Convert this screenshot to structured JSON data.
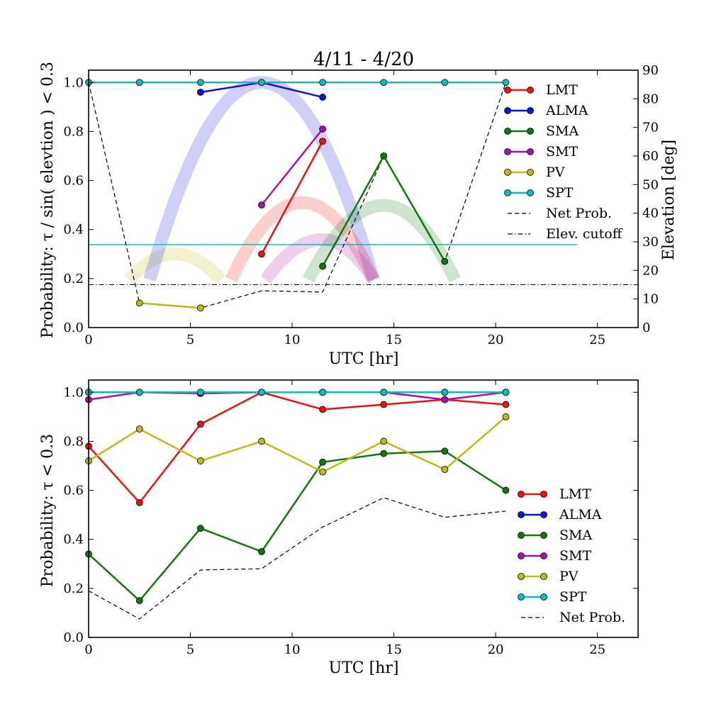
{
  "colors": {
    "LMT": "#ee1111",
    "ALMA": "#1111dd",
    "SMA": "#117711",
    "SMT": "#aa11aa",
    "PV": "#bbbb11",
    "SPT": "#11bbbb",
    "net": "#000000"
  },
  "chart_data": [
    {
      "type": "line",
      "title": "4/11 - 4/20",
      "xlabel": "UTC [hr]",
      "ylabel": "Probability: τ / sin( elevtion ) < 0.3",
      "y2label": "Elevation [deg]",
      "xlim": [
        0,
        27
      ],
      "ylim": [
        0,
        1.05
      ],
      "y2lim": [
        0,
        90
      ],
      "xticks": [
        "0",
        "5",
        "10",
        "15",
        "20",
        "25"
      ],
      "yticks": [
        "0.0",
        "0.2",
        "0.4",
        "0.6",
        "0.8",
        "1.0"
      ],
      "y2ticks": [
        "0",
        "10",
        "20",
        "30",
        "40",
        "50",
        "60",
        "70",
        "80",
        "90"
      ],
      "legend_position": "right",
      "series": [
        {
          "name": "LMT",
          "color": "#ee1111",
          "points": [
            [
              8.5,
              0.3
            ],
            [
              11.5,
              0.76
            ]
          ]
        },
        {
          "name": "ALMA",
          "color": "#1111dd",
          "points": [
            [
              5.5,
              0.96
            ],
            [
              8.5,
              1.0
            ],
            [
              11.5,
              0.94
            ]
          ]
        },
        {
          "name": "SMA",
          "color": "#117711",
          "points": [
            [
              11.5,
              0.25
            ],
            [
              14.5,
              0.7
            ],
            [
              17.5,
              0.27
            ]
          ]
        },
        {
          "name": "SMT",
          "color": "#aa11aa",
          "points": [
            [
              8.5,
              0.5
            ],
            [
              11.5,
              0.81
            ]
          ]
        },
        {
          "name": "PV",
          "color": "#bbbb11",
          "points": [
            [
              2.5,
              0.1
            ],
            [
              5.5,
              0.08
            ]
          ]
        },
        {
          "name": "SPT",
          "color": "#11bbbb",
          "points": [
            [
              0,
              1.0
            ],
            [
              2.5,
              1.0
            ],
            [
              5.5,
              1.0
            ],
            [
              8.5,
              1.0
            ],
            [
              11.5,
              1.0
            ],
            [
              14.5,
              1.0
            ],
            [
              17.5,
              1.0
            ],
            [
              20.5,
              1.0
            ]
          ]
        }
      ],
      "net_prob": {
        "name": "Net Prob.",
        "points": [
          [
            0,
            1.0
          ],
          [
            2.5,
            0.1
          ],
          [
            5.5,
            0.08
          ],
          [
            8.5,
            0.15
          ],
          [
            11.5,
            0.145
          ],
          [
            14.5,
            0.7
          ],
          [
            17.5,
            0.27
          ],
          [
            20.5,
            1.0
          ]
        ]
      },
      "elev_cutoff": {
        "name": "Elev. cutoff",
        "value_deg": 15
      },
      "spt_elevation_deg": 29,
      "elevation_tracks": [
        {
          "station": "PV",
          "start": 2,
          "end": 6.5,
          "peak": 4.2,
          "max_deg": 24
        },
        {
          "station": "ALMA",
          "start": 3,
          "end": 14,
          "peak": 8.5,
          "max_deg": 84
        },
        {
          "station": "LMT",
          "start": 7,
          "end": 14,
          "peak": 10.5,
          "max_deg": 42
        },
        {
          "station": "SMT",
          "start": 8.7,
          "end": 14,
          "peak": 11.5,
          "max_deg": 29
        },
        {
          "station": "SMA",
          "start": 10.8,
          "end": 18,
          "peak": 14.5,
          "max_deg": 41
        }
      ]
    },
    {
      "type": "line",
      "xlabel": "UTC [hr]",
      "ylabel": "Probability: τ < 0.3",
      "xlim": [
        0,
        27
      ],
      "ylim": [
        0,
        1.05
      ],
      "xticks": [
        "0",
        "5",
        "10",
        "15",
        "20",
        "25"
      ],
      "yticks": [
        "0.0",
        "0.2",
        "0.4",
        "0.6",
        "0.8",
        "1.0"
      ],
      "legend_position": "lower-right",
      "x": [
        0,
        2.5,
        5.5,
        8.5,
        11.5,
        14.5,
        17.5,
        20.5
      ],
      "series": [
        {
          "name": "LMT",
          "color": "#ee1111",
          "values": [
            0.78,
            0.55,
            0.87,
            1.0,
            0.93,
            0.95,
            0.97,
            0.95
          ]
        },
        {
          "name": "ALMA",
          "color": "#1111dd",
          "values": [
            1.0,
            1.0,
            1.0,
            1.0,
            1.0,
            1.0,
            1.0,
            1.0
          ]
        },
        {
          "name": "SMA",
          "color": "#117711",
          "values": [
            0.34,
            0.15,
            0.445,
            0.35,
            0.715,
            0.75,
            0.76,
            0.6
          ]
        },
        {
          "name": "SMT",
          "color": "#aa11aa",
          "values": [
            0.97,
            1.0,
            0.995,
            1.0,
            1.0,
            1.0,
            0.97,
            1.0
          ]
        },
        {
          "name": "PV",
          "color": "#bbbb11",
          "values": [
            0.72,
            0.85,
            0.72,
            0.8,
            0.675,
            0.8,
            0.685,
            0.9
          ]
        },
        {
          "name": "SPT",
          "color": "#11bbbb",
          "values": [
            1.0,
            1.0,
            1.0,
            1.0,
            1.0,
            1.0,
            1.0,
            1.0
          ]
        }
      ],
      "net_prob": {
        "name": "Net Prob.",
        "x": [
          0,
          2.5,
          5.5,
          8.5,
          11.5,
          14.5,
          17.5,
          20.5
        ],
        "values": [
          0.19,
          0.075,
          0.275,
          0.28,
          0.45,
          0.57,
          0.49,
          0.515
        ]
      }
    }
  ]
}
